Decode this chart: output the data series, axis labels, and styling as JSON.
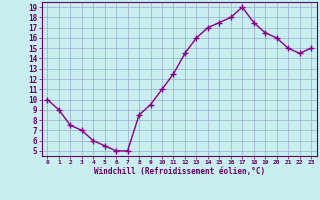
{
  "x": [
    0,
    1,
    2,
    3,
    4,
    5,
    6,
    7,
    8,
    9,
    10,
    11,
    12,
    13,
    14,
    15,
    16,
    17,
    18,
    19,
    20,
    21,
    22,
    23
  ],
  "y": [
    10,
    9,
    7.5,
    7,
    6,
    5.5,
    5,
    5,
    8.5,
    9.5,
    11,
    12.5,
    14.5,
    16,
    17,
    17.5,
    18,
    19,
    17.5,
    16.5,
    16,
    15,
    14.5,
    15
  ],
  "line_color": "#880088",
  "marker": "+",
  "marker_size": 5,
  "bg_color": "#c8eef0",
  "grid_color": "#99aacc",
  "xlabel": "Windchill (Refroidissement éolien,°C)",
  "xlabel_color": "#660066",
  "tick_color": "#660066",
  "spine_color": "#660066",
  "xlim": [
    -0.5,
    23.5
  ],
  "ylim": [
    4.5,
    19.5
  ],
  "yticks": [
    5,
    6,
    7,
    8,
    9,
    10,
    11,
    12,
    13,
    14,
    15,
    16,
    17,
    18,
    19
  ],
  "xticks": [
    0,
    1,
    2,
    3,
    4,
    5,
    6,
    7,
    8,
    9,
    10,
    11,
    12,
    13,
    14,
    15,
    16,
    17,
    18,
    19,
    20,
    21,
    22,
    23
  ],
  "xtick_labels": [
    "0",
    "1",
    "2",
    "3",
    "4",
    "5",
    "6",
    "7",
    "8",
    "9",
    "10",
    "11",
    "12",
    "13",
    "14",
    "15",
    "16",
    "17",
    "18",
    "19",
    "20",
    "21",
    "22",
    "23"
  ]
}
